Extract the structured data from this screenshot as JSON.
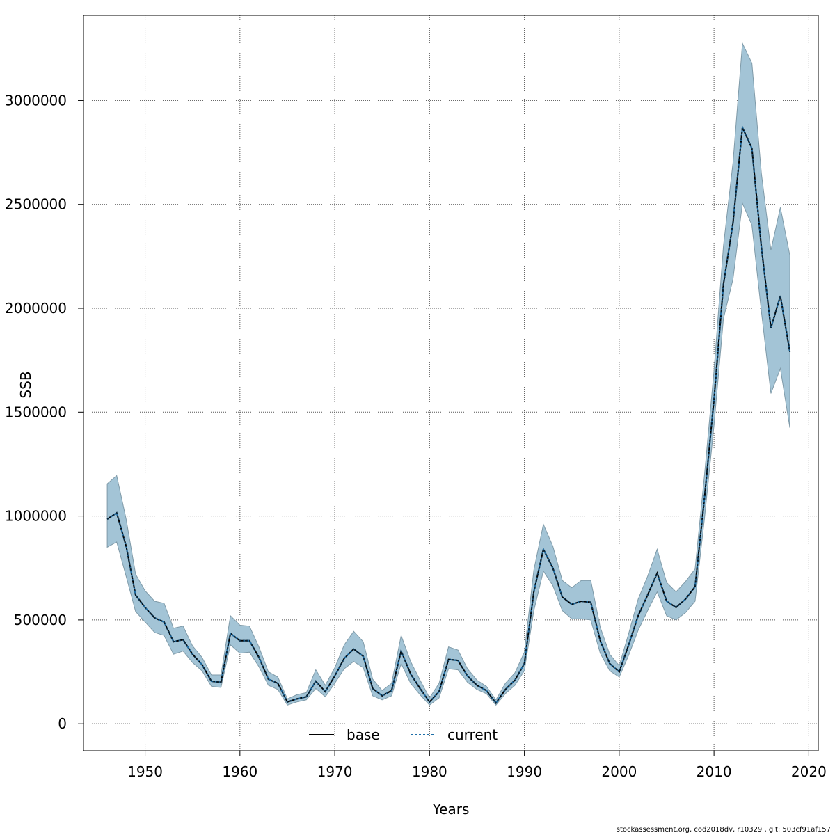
{
  "chart_data": {
    "type": "line",
    "xlabel": "Years",
    "ylabel": "SSB",
    "xlim": [
      1943.5,
      2021
    ],
    "ylim": [
      -130000,
      3410000
    ],
    "xticks": [
      1950,
      1960,
      1970,
      1980,
      1990,
      2000,
      2010,
      2020
    ],
    "yticks": [
      0,
      500000,
      1000000,
      1500000,
      2000000,
      2500000,
      3000000
    ],
    "grid": true,
    "legend_position": "bottom",
    "band_color": "#a3c4d6",
    "x": [
      1946,
      1947,
      1948,
      1949,
      1950,
      1951,
      1952,
      1953,
      1954,
      1955,
      1956,
      1957,
      1958,
      1959,
      1960,
      1961,
      1962,
      1963,
      1964,
      1965,
      1966,
      1967,
      1968,
      1969,
      1970,
      1971,
      1972,
      1973,
      1974,
      1975,
      1976,
      1977,
      1978,
      1979,
      1980,
      1981,
      1982,
      1983,
      1984,
      1985,
      1986,
      1987,
      1988,
      1989,
      1990,
      1991,
      1992,
      1993,
      1994,
      1995,
      1996,
      1997,
      1998,
      1999,
      2000,
      2001,
      2002,
      2003,
      2004,
      2005,
      2006,
      2007,
      2008,
      2009,
      2010,
      2011,
      2012,
      2013,
      2014,
      2015,
      2016,
      2017,
      2018
    ],
    "upper": [
      1155000,
      1195000,
      985000,
      720000,
      640000,
      590000,
      580000,
      460000,
      470000,
      375000,
      320000,
      235000,
      235000,
      520000,
      475000,
      470000,
      370000,
      250000,
      225000,
      120000,
      140000,
      150000,
      260000,
      185000,
      270000,
      380000,
      445000,
      395000,
      215000,
      160000,
      195000,
      425000,
      300000,
      210000,
      125000,
      195000,
      370000,
      355000,
      265000,
      210000,
      180000,
      115000,
      195000,
      245000,
      345000,
      740000,
      960000,
      855000,
      690000,
      655000,
      690000,
      690000,
      465000,
      335000,
      280000,
      435000,
      600000,
      710000,
      840000,
      680000,
      635000,
      685000,
      745000,
      1200000,
      1700000,
      2300000,
      2700000,
      3275000,
      3180000,
      2650000,
      2280000,
      2485000,
      2255000
    ],
    "lower": [
      850000,
      875000,
      710000,
      540000,
      490000,
      440000,
      425000,
      335000,
      350000,
      295000,
      255000,
      180000,
      175000,
      380000,
      340000,
      345000,
      275000,
      185000,
      165000,
      90000,
      105000,
      115000,
      170000,
      130000,
      195000,
      265000,
      300000,
      270000,
      135000,
      115000,
      135000,
      290000,
      195000,
      140000,
      90000,
      125000,
      265000,
      260000,
      200000,
      165000,
      145000,
      90000,
      145000,
      185000,
      255000,
      545000,
      735000,
      665000,
      545000,
      505000,
      505000,
      500000,
      340000,
      255000,
      225000,
      330000,
      450000,
      545000,
      635000,
      520000,
      500000,
      535000,
      590000,
      990000,
      1435000,
      1950000,
      2140000,
      2505000,
      2400000,
      1985000,
      1590000,
      1710000,
      1425000
    ],
    "series": [
      {
        "name": "base",
        "color": "#000000",
        "dash": "solid",
        "values": [
          985000,
          1015000,
          855000,
          620000,
          560000,
          510000,
          490000,
          395000,
          405000,
          335000,
          285000,
          205000,
          200000,
          435000,
          400000,
          400000,
          320000,
          215000,
          195000,
          105000,
          120000,
          130000,
          205000,
          155000,
          230000,
          315000,
          360000,
          325000,
          170000,
          135000,
          160000,
          350000,
          240000,
          170000,
          105000,
          155000,
          310000,
          305000,
          230000,
          185000,
          160000,
          100000,
          165000,
          210000,
          290000,
          635000,
          840000,
          750000,
          610000,
          575000,
          590000,
          585000,
          400000,
          290000,
          250000,
          380000,
          520000,
          620000,
          725000,
          590000,
          560000,
          600000,
          660000,
          1090000,
          1560000,
          2115000,
          2410000,
          2870000,
          2770000,
          2295000,
          1905000,
          2060000,
          1790000
        ]
      },
      {
        "name": "current",
        "color": "#1f6fa8",
        "dash": "3,3",
        "values": [
          985000,
          1015000,
          855000,
          620000,
          560000,
          510000,
          490000,
          395000,
          405000,
          335000,
          285000,
          205000,
          200000,
          435000,
          400000,
          400000,
          320000,
          215000,
          195000,
          105000,
          120000,
          130000,
          205000,
          155000,
          230000,
          315000,
          360000,
          325000,
          170000,
          135000,
          160000,
          350000,
          240000,
          170000,
          105000,
          155000,
          310000,
          305000,
          230000,
          185000,
          160000,
          100000,
          165000,
          210000,
          290000,
          635000,
          840000,
          750000,
          610000,
          575000,
          590000,
          585000,
          400000,
          290000,
          250000,
          380000,
          520000,
          620000,
          725000,
          590000,
          560000,
          600000,
          660000,
          1090000,
          1560000,
          2115000,
          2410000,
          2870000,
          2770000,
          2295000,
          1905000,
          2060000,
          1790000
        ]
      }
    ]
  },
  "footer_text": "stockassessment.org, cod2018dv, r10329 , git: 503cf91af157"
}
